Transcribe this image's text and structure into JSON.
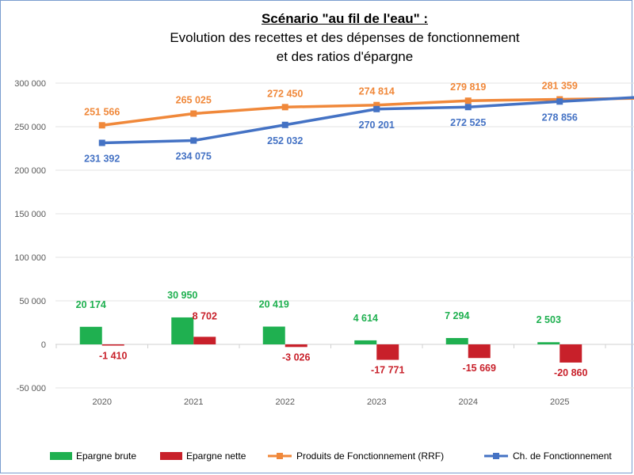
{
  "chart_data": {
    "type": "bar+line",
    "title": "Scénario \"au fil de l'eau\" :",
    "subtitle_lines": [
      "Evolution des recettes et des dépenses de fonctionnement",
      "et des ratios d'épargne"
    ],
    "categories": [
      "2020",
      "2021",
      "2022",
      "2023",
      "2024",
      "2025"
    ],
    "ylim": [
      -50000,
      300000
    ],
    "yticks": [
      -50000,
      0,
      50000,
      100000,
      150000,
      200000,
      250000,
      300000
    ],
    "ytick_labels": [
      "-50 000",
      "0",
      "50 000",
      "100 000",
      "150 000",
      "200 000",
      "250 000",
      "300 000"
    ],
    "grid": true,
    "legend_position": "bottom",
    "series": [
      {
        "name": "Epargne brute",
        "kind": "bar",
        "color": "#1fb050",
        "values": [
          20174,
          30950,
          20419,
          4614,
          7294,
          2503
        ],
        "labels": [
          "20 174",
          "30 950",
          "20 419",
          "4 614",
          "7 294",
          "2 503"
        ]
      },
      {
        "name": "Epargne nette",
        "kind": "bar",
        "color": "#c8202a",
        "values": [
          -1410,
          8702,
          -3026,
          -17771,
          -15669,
          -20860
        ],
        "labels": [
          "-1 410",
          "8 702",
          "-3 026",
          "-17 771",
          "-15 669",
          "-20 860"
        ]
      },
      {
        "name": "Produits de Fonctionnement (RRF)",
        "kind": "line",
        "color": "#f0883a",
        "values": [
          251566,
          265025,
          272450,
          274814,
          279819,
          281359
        ],
        "labels": [
          "251 566",
          "265 025",
          "272 450",
          "274 814",
          "279 819",
          "281 359"
        ]
      },
      {
        "name": "Ch. de Fonctionnement",
        "kind": "line",
        "color": "#4472c4",
        "values": [
          231392,
          234075,
          252032,
          270201,
          272525,
          278856
        ],
        "labels": [
          "231 392",
          "234 075",
          "252 032",
          "270 201",
          "272 525",
          "278 856"
        ]
      }
    ]
  }
}
